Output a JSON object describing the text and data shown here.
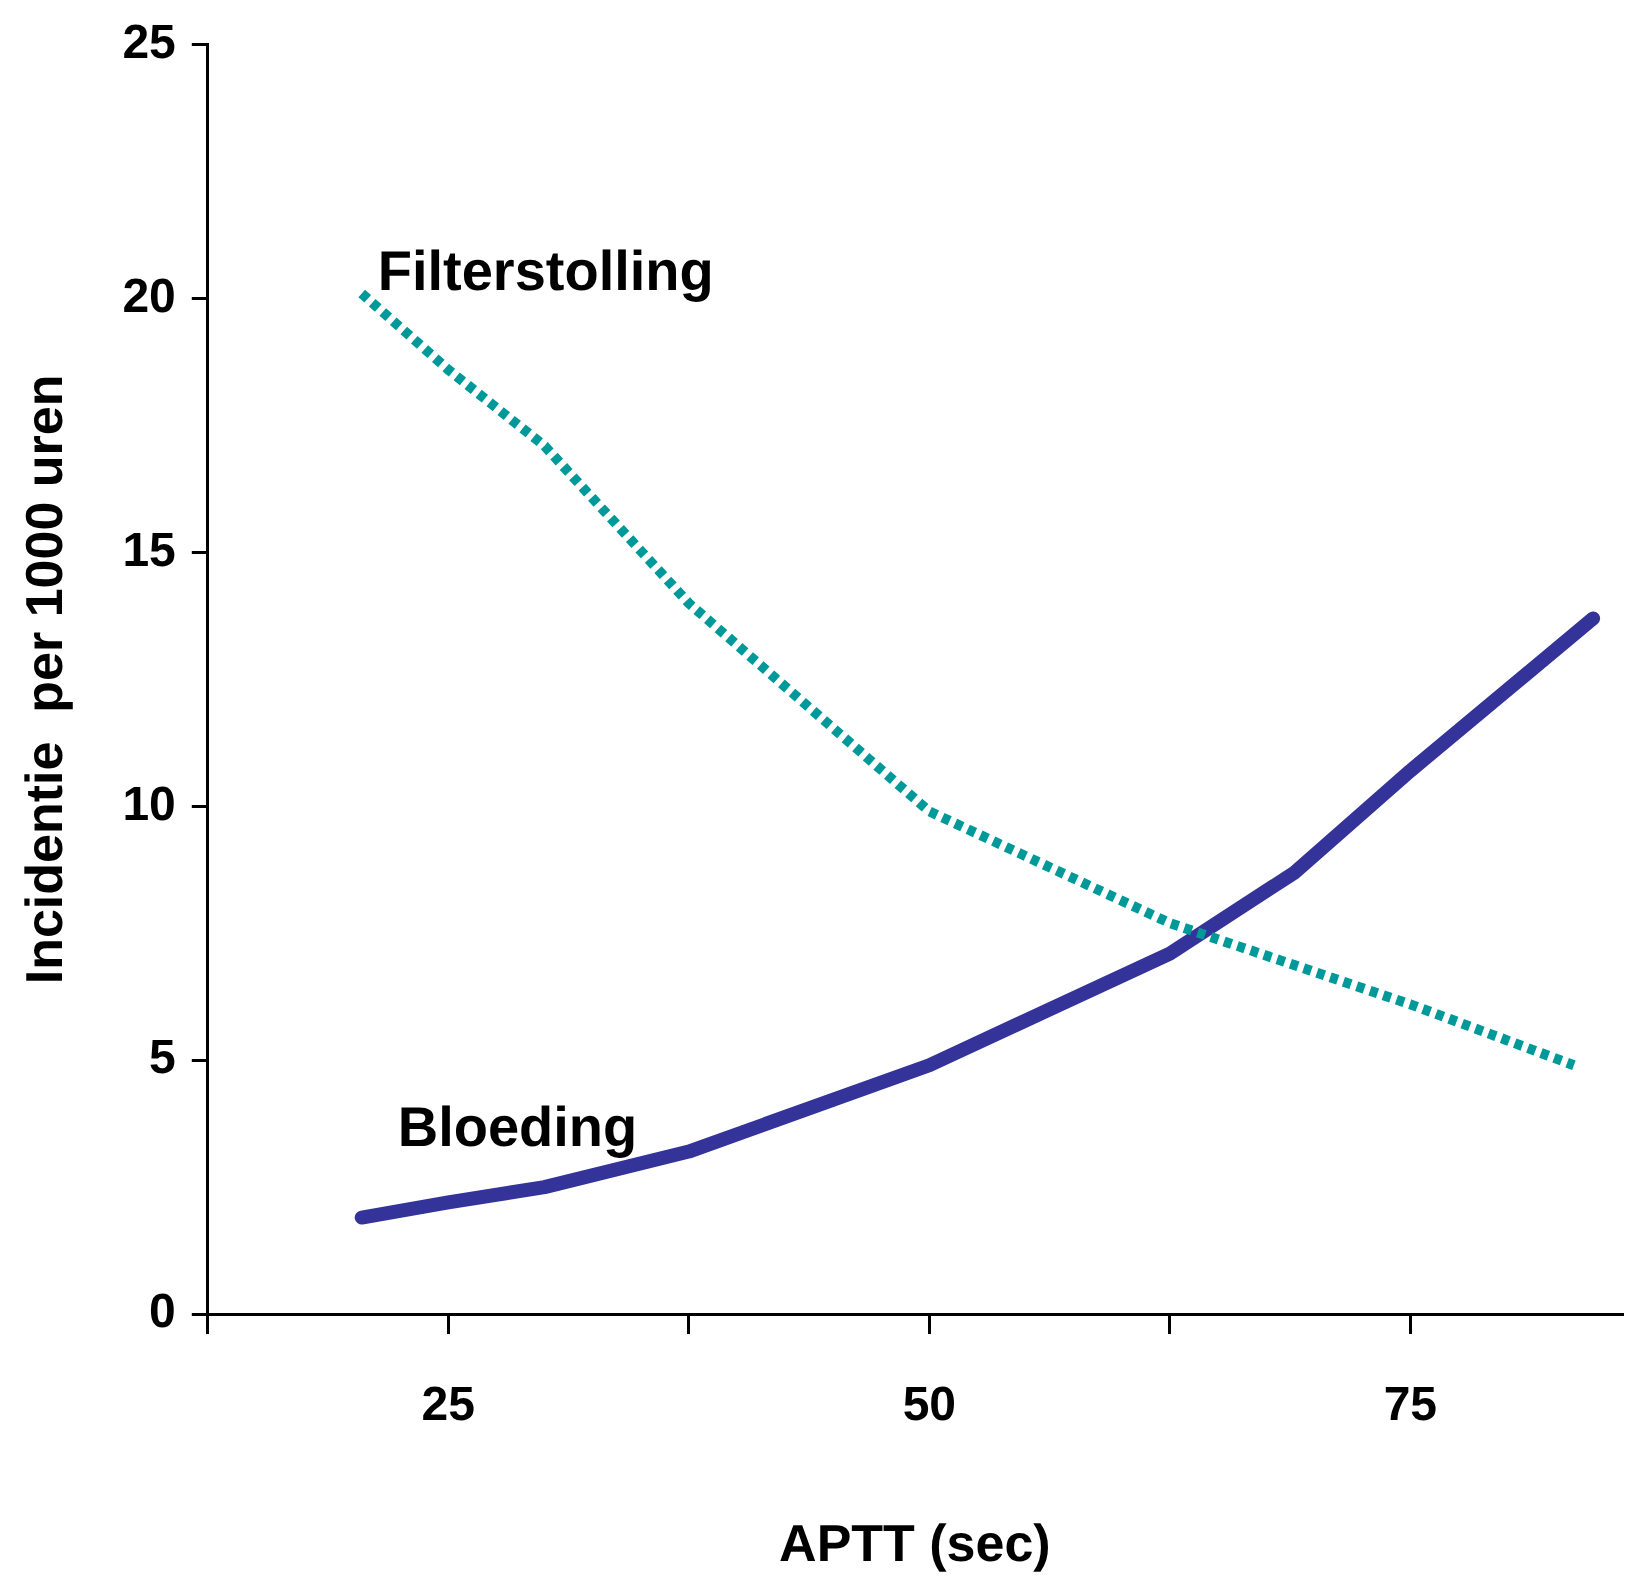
{
  "chart_data": {
    "type": "line",
    "xlabel": "APTT (sec)",
    "ylabel": "Incidentie  per 1000 uren",
    "xlim": [
      12.5,
      86
    ],
    "xticks": [
      {
        "value": 12.5,
        "label": null
      },
      25,
      {
        "value": 37.5,
        "label": null
      },
      50,
      {
        "value": 62.5,
        "label": null
      },
      75
    ],
    "ylim": [
      0,
      25
    ],
    "yticks": [
      0,
      5,
      10,
      15,
      20,
      25
    ],
    "grid": false,
    "legend": false,
    "marker": "none",
    "series": [
      {
        "name": "Filterstolling",
        "color": "#009999",
        "line_style": "dotted",
        "x": [
          20.5,
          25,
          30,
          37.5,
          50,
          62.5,
          75,
          83.5
        ],
        "values": [
          20.1,
          18.6,
          17.1,
          14.0,
          9.9,
          7.7,
          6.1,
          4.9
        ]
      },
      {
        "name": "Bloeding",
        "color": "#333399",
        "line_style": "solid",
        "x": [
          20.5,
          25,
          30,
          37.5,
          50,
          62.5,
          69,
          75,
          84.5
        ],
        "values": [
          1.9,
          2.2,
          2.5,
          3.2,
          4.9,
          7.1,
          8.7,
          10.7,
          13.7
        ]
      }
    ]
  }
}
